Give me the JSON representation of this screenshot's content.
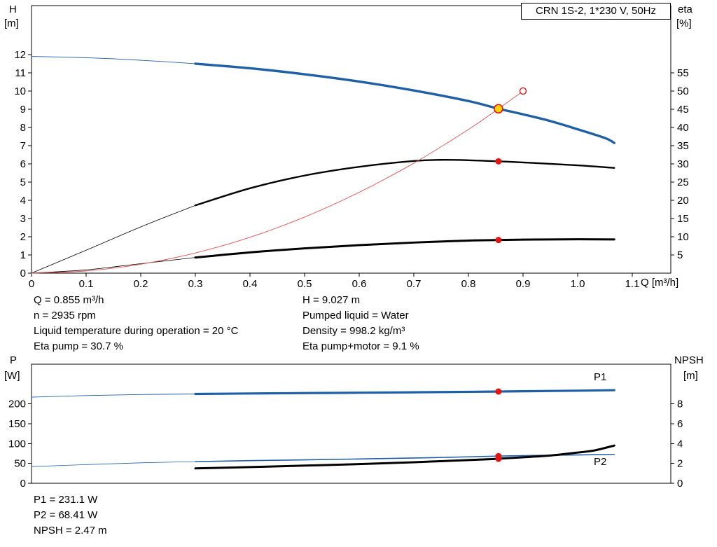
{
  "title_box": {
    "text": "CRN 1S-2, 1*230 V, 50Hz"
  },
  "axis_labels": {
    "top_left_title": "H",
    "top_left_unit": "[m]",
    "top_right_title": "eta",
    "top_right_unit": "[%]",
    "x_title": "Q [m³/h]",
    "bottom_left_title": "P",
    "bottom_left_unit": "[W]",
    "bottom_right_title": "NPSH",
    "bottom_right_unit": "[m]"
  },
  "annotations": {
    "left": [
      "Q = 0.855 m³/h",
      "n = 2935 rpm",
      "Liquid temperature during operation = 20 °C",
      "Eta pump = 30.7 %"
    ],
    "right": [
      "H = 9.027 m",
      "Pumped liquid = Water",
      "Density = 998.2 kg/m³",
      "Eta pump+motor = 9.1 %"
    ],
    "bottom": [
      "P1 = 231.1 W",
      "P2 = 68.41 W",
      "NPSH = 2.47 m"
    ]
  },
  "colors": {
    "curve_blue": "#1f5fa6",
    "curve_black": "#000000",
    "curve_red": "#e05252",
    "marker_red": "#e01616",
    "marker_yellow": "#ffd400"
  },
  "chart_data": [
    {
      "type": "line",
      "title": "CRN 1S-2, 1*230 V, 50Hz",
      "xlabel": "Q [m³/h]",
      "x_range": [
        0,
        1.1705
      ],
      "x_ticks": [
        0,
        0.1,
        0.2,
        0.3,
        0.4,
        0.5,
        0.6,
        0.7,
        0.8,
        0.9,
        1.0,
        1.1
      ],
      "x_tick_labels": [
        "0",
        "0.1",
        "0.2",
        "0.3",
        "0.4",
        "0.5",
        "0.6",
        "0.7",
        "0.8",
        "0.9",
        "1.0",
        "1.1"
      ],
      "left_axis": {
        "label": "H [m]",
        "range": [
          0,
          14.69
        ],
        "ticks": [
          0,
          1,
          2,
          3,
          4,
          5,
          6,
          7,
          8,
          9,
          10,
          11,
          12
        ],
        "tick_labels": [
          "0",
          "1",
          "2",
          "3",
          "4",
          "5",
          "6",
          "7",
          "8",
          "9",
          "10",
          "11",
          "12"
        ]
      },
      "right_axis": {
        "label": "eta [%]",
        "range": [
          0,
          73.45
        ],
        "ticks": [
          5,
          10,
          15,
          20,
          25,
          30,
          35,
          40,
          45,
          50,
          55
        ],
        "tick_labels": [
          "5",
          "10",
          "15",
          "20",
          "25",
          "30",
          "35",
          "40",
          "45",
          "50",
          "55"
        ]
      },
      "series": [
        {
          "name": "pump-curve",
          "axis": "left",
          "color": "#1f5fa6",
          "width": 3.4,
          "thin_until": 0.3,
          "thin_width": 0.9,
          "points": [
            [
              0,
              11.9
            ],
            [
              0.05,
              11.87
            ],
            [
              0.1,
              11.83
            ],
            [
              0.15,
              11.77
            ],
            [
              0.2,
              11.69
            ],
            [
              0.25,
              11.6
            ],
            [
              0.3,
              11.5
            ],
            [
              0.4,
              11.25
            ],
            [
              0.5,
              10.92
            ],
            [
              0.6,
              10.52
            ],
            [
              0.7,
              10.03
            ],
            [
              0.8,
              9.45
            ],
            [
              0.855,
              9.027
            ],
            [
              0.9,
              8.72
            ],
            [
              0.95,
              8.35
            ],
            [
              1.0,
              7.9
            ],
            [
              1.05,
              7.42
            ],
            [
              1.067,
              7.15
            ]
          ]
        },
        {
          "name": "eta-pump-curve",
          "axis": "right",
          "color": "#000000",
          "width": 2.4,
          "thin_until": 0.3,
          "thin_width": 0.8,
          "points": [
            [
              0,
              0
            ],
            [
              0.1,
              6.3
            ],
            [
              0.2,
              12.7
            ],
            [
              0.3,
              18.6
            ],
            [
              0.4,
              23.3
            ],
            [
              0.5,
              26.8
            ],
            [
              0.6,
              29.2
            ],
            [
              0.7,
              30.8
            ],
            [
              0.75,
              31.1
            ],
            [
              0.8,
              31.0
            ],
            [
              0.855,
              30.7
            ],
            [
              0.9,
              30.4
            ],
            [
              1.0,
              29.6
            ],
            [
              1.067,
              28.9
            ]
          ]
        },
        {
          "name": "eta-pump-motor-curve",
          "axis": "right",
          "color": "#000000",
          "width": 3.0,
          "thin_until": 0.3,
          "thin_width": 0.8,
          "points": [
            [
              0,
              0
            ],
            [
              0.1,
              0.9
            ],
            [
              0.2,
              2.6
            ],
            [
              0.3,
              4.3
            ],
            [
              0.4,
              5.7
            ],
            [
              0.5,
              6.8
            ],
            [
              0.6,
              7.7
            ],
            [
              0.7,
              8.4
            ],
            [
              0.8,
              8.95
            ],
            [
              0.855,
              9.1
            ],
            [
              0.9,
              9.2
            ],
            [
              1.0,
              9.3
            ],
            [
              1.067,
              9.25
            ]
          ]
        },
        {
          "name": "system-curve",
          "axis": "left",
          "color": "#e05252",
          "width": 0.9,
          "points": [
            [
              0,
              0
            ],
            [
              0.1,
              0.12
            ],
            [
              0.2,
              0.49
            ],
            [
              0.3,
              1.11
            ],
            [
              0.4,
              1.97
            ],
            [
              0.5,
              3.08
            ],
            [
              0.6,
              4.44
            ],
            [
              0.7,
              6.04
            ],
            [
              0.8,
              7.89
            ],
            [
              0.855,
              9.027
            ],
            [
              0.9,
              10.0
            ]
          ]
        }
      ],
      "markers": [
        {
          "name": "operating-point",
          "axis": "left",
          "q": 0.855,
          "v": 9.027,
          "r": 6,
          "fill": "#ffd400",
          "stroke": "#e01616",
          "stroke_width": 1.6
        },
        {
          "name": "requested-duty-point",
          "axis": "left",
          "q": 0.9,
          "v": 10.0,
          "r": 4.5,
          "fill": "#ffffff",
          "stroke": "#e01616",
          "stroke_width": 1.4
        },
        {
          "name": "eta-pump-point",
          "axis": "right",
          "q": 0.855,
          "v": 30.7,
          "r": 4.5,
          "fill": "#e01616"
        },
        {
          "name": "eta-pump-motor-point",
          "axis": "right",
          "q": 0.855,
          "v": 9.1,
          "r": 4.5,
          "fill": "#e01616"
        }
      ],
      "labels": []
    },
    {
      "type": "line",
      "title": "Power and NPSH curves",
      "xlabel": "Q [m³/h]",
      "x_range": [
        0,
        1.1705
      ],
      "x_ticks": [],
      "x_tick_labels": [],
      "left_axis": {
        "label": "P [W]",
        "range": [
          0,
          300
        ],
        "ticks": [
          0,
          50,
          100,
          150,
          200
        ],
        "tick_labels": [
          "0",
          "50",
          "100",
          "150",
          "200"
        ]
      },
      "right_axis": {
        "label": "NPSH [m]",
        "range": [
          0,
          12
        ],
        "ticks": [
          0,
          2,
          4,
          6,
          8
        ],
        "tick_labels": [
          "0",
          "2",
          "4",
          "6",
          "8"
        ]
      },
      "series": [
        {
          "name": "p1-curve",
          "axis": "left",
          "color": "#1f5fa6",
          "width": 3.2,
          "thin_until": 0.3,
          "thin_width": 0.9,
          "points": [
            [
              0,
              217
            ],
            [
              0.1,
              221
            ],
            [
              0.2,
              223.5
            ],
            [
              0.3,
              225
            ],
            [
              0.4,
              226.2
            ],
            [
              0.5,
              227.2
            ],
            [
              0.6,
              228.2
            ],
            [
              0.7,
              229.2
            ],
            [
              0.8,
              230.4
            ],
            [
              0.855,
              231.1
            ],
            [
              0.9,
              231.8
            ],
            [
              1.0,
              233.3
            ],
            [
              1.067,
              234.6
            ]
          ]
        },
        {
          "name": "p2-curve",
          "axis": "left",
          "color": "#1f5fa6",
          "width": 1.6,
          "thin_until": 0.3,
          "thin_width": 0.8,
          "points": [
            [
              0,
              42
            ],
            [
              0.1,
              47
            ],
            [
              0.2,
              51.5
            ],
            [
              0.3,
              54.5
            ],
            [
              0.4,
              57
            ],
            [
              0.5,
              59
            ],
            [
              0.6,
              61.2
            ],
            [
              0.7,
              63.6
            ],
            [
              0.8,
              66.6
            ],
            [
              0.855,
              68.41
            ],
            [
              0.9,
              69.6
            ],
            [
              1.0,
              71.4
            ],
            [
              1.067,
              72.8
            ]
          ]
        },
        {
          "name": "npsh-curve",
          "axis": "right",
          "color": "#000000",
          "width": 3.0,
          "points": [
            [
              0.3,
              1.5
            ],
            [
              0.4,
              1.63
            ],
            [
              0.5,
              1.78
            ],
            [
              0.6,
              1.93
            ],
            [
              0.7,
              2.12
            ],
            [
              0.8,
              2.34
            ],
            [
              0.855,
              2.47
            ],
            [
              0.9,
              2.62
            ],
            [
              0.95,
              2.8
            ],
            [
              1.0,
              3.1
            ],
            [
              1.03,
              3.3
            ],
            [
              1.067,
              3.8
            ]
          ]
        }
      ],
      "markers": [
        {
          "name": "p1-point",
          "axis": "left",
          "q": 0.855,
          "v": 231.1,
          "r": 4.5,
          "fill": "#e01616"
        },
        {
          "name": "p2-point",
          "axis": "left",
          "q": 0.855,
          "v": 68.41,
          "r": 4.5,
          "fill": "#e01616"
        },
        {
          "name": "npsh-point",
          "axis": "right",
          "q": 0.855,
          "v": 2.47,
          "r": 4.5,
          "fill": "#e01616"
        }
      ],
      "labels": [
        {
          "text": "P1",
          "x": 848,
          "y": 43,
          "color": "#1f5fa6"
        },
        {
          "text": "P2",
          "x": 848,
          "y": 164,
          "color": "#1f5fa6"
        }
      ]
    }
  ]
}
